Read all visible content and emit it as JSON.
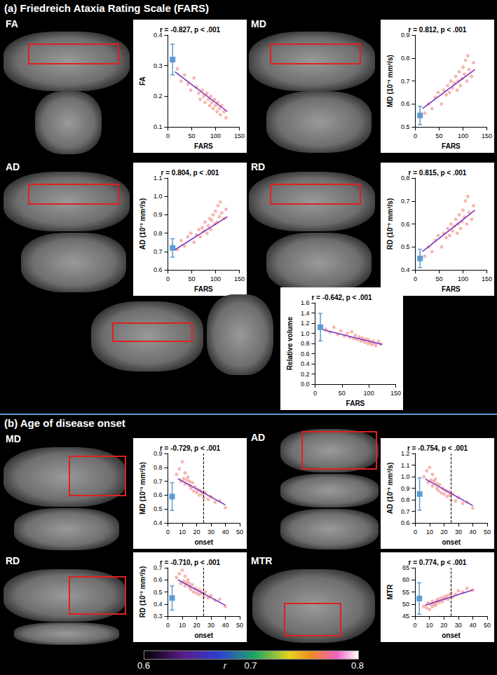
{
  "sections": [
    {
      "label": "(a)",
      "title": "Friedreich Ataxia Rating Scale (FARS)"
    },
    {
      "label": "(b)",
      "title": "Age of disease onset"
    }
  ],
  "colorbar": {
    "label": "r",
    "range": [
      0.6,
      0.8
    ],
    "ticks": [
      0.6,
      0.7,
      0.8
    ]
  },
  "chart_data": [
    {
      "type": "scatter",
      "panel": "FA",
      "annotation": "r = -0.827, p < .001",
      "xlabel": "FARS",
      "ylabel": "FA",
      "grid": false,
      "xlim": [
        0,
        150
      ],
      "xticks": [
        0,
        50,
        100,
        150
      ],
      "ylim": [
        0.1,
        0.4
      ],
      "yticks": [
        0.1,
        0.2,
        0.3,
        0.4
      ],
      "series": [
        {
          "type": "scatter",
          "color": "#f4a6a0",
          "x": [
            20,
            28,
            35,
            42,
            48,
            55,
            60,
            65,
            68,
            72,
            75,
            78,
            82,
            85,
            88,
            90,
            92,
            95,
            98,
            100,
            103,
            105,
            108,
            110,
            113,
            118,
            122
          ],
          "values": [
            0.29,
            0.25,
            0.27,
            0.24,
            0.22,
            0.26,
            0.23,
            0.21,
            0.19,
            0.22,
            0.2,
            0.18,
            0.21,
            0.19,
            0.17,
            0.2,
            0.18,
            0.16,
            0.19,
            0.17,
            0.15,
            0.18,
            0.16,
            0.14,
            0.17,
            0.15,
            0.13
          ]
        },
        {
          "type": "line",
          "color": "#7b2fbe",
          "x": [
            15,
            125
          ],
          "values": [
            0.28,
            0.15
          ]
        },
        {
          "type": "errorbar",
          "color": "#5b9bd5",
          "x": [
            10
          ],
          "values": [
            0.32
          ],
          "error": [
            0.05
          ]
        }
      ]
    },
    {
      "type": "scatter",
      "panel": "MD",
      "annotation": "r = 0.812, p < .001",
      "xlabel": "FARS",
      "ylabel": "MD (10⁻³ mm²/s)",
      "grid": false,
      "xlim": [
        0,
        150
      ],
      "xticks": [
        0,
        50,
        100,
        150
      ],
      "ylim": [
        0.5,
        0.9
      ],
      "yticks": [
        0.5,
        0.6,
        0.7,
        0.8,
        0.9
      ],
      "series": [
        {
          "type": "scatter",
          "color": "#f4a6a0",
          "x": [
            20,
            28,
            35,
            42,
            48,
            55,
            60,
            65,
            68,
            72,
            75,
            78,
            82,
            85,
            88,
            90,
            92,
            95,
            98,
            100,
            103,
            105,
            108,
            110,
            113,
            118,
            122
          ],
          "values": [
            0.56,
            0.6,
            0.58,
            0.63,
            0.65,
            0.6,
            0.66,
            0.64,
            0.68,
            0.65,
            0.7,
            0.67,
            0.69,
            0.72,
            0.66,
            0.7,
            0.74,
            0.68,
            0.71,
            0.76,
            0.73,
            0.79,
            0.7,
            0.81,
            0.75,
            0.72,
            0.78
          ]
        },
        {
          "type": "line",
          "color": "#7b2fbe",
          "x": [
            15,
            125
          ],
          "values": [
            0.58,
            0.75
          ]
        },
        {
          "type": "errorbar",
          "color": "#5b9bd5",
          "x": [
            10
          ],
          "values": [
            0.55
          ],
          "error": [
            0.04
          ]
        }
      ]
    },
    {
      "type": "scatter",
      "panel": "AD",
      "annotation": "r = 0.804, p < .001",
      "xlabel": "FARS",
      "ylabel": "AD (10⁻³ mm²/s)",
      "grid": false,
      "xlim": [
        0,
        150
      ],
      "xticks": [
        0,
        50,
        100,
        150
      ],
      "ylim": [
        0.6,
        1.1
      ],
      "yticks": [
        0.6,
        0.7,
        0.8,
        0.9,
        {
          "value": 1,
          "label": "1.0"
        },
        1.1
      ],
      "series": [
        {
          "type": "scatter",
          "color": "#f4a6a0",
          "x": [
            20,
            28,
            35,
            42,
            48,
            55,
            60,
            65,
            68,
            72,
            75,
            78,
            82,
            85,
            88,
            90,
            92,
            95,
            98,
            100,
            103,
            105,
            108,
            110,
            113,
            118,
            122
          ],
          "values": [
            0.71,
            0.76,
            0.73,
            0.78,
            0.8,
            0.75,
            0.79,
            0.82,
            0.78,
            0.83,
            0.81,
            0.86,
            0.8,
            0.84,
            0.88,
            0.82,
            0.87,
            0.9,
            0.85,
            0.92,
            0.86,
            0.95,
            0.89,
            0.97,
            0.91,
            0.88,
            0.93
          ]
        },
        {
          "type": "line",
          "color": "#7b2fbe",
          "x": [
            15,
            125
          ],
          "values": [
            0.71,
            0.89
          ]
        },
        {
          "type": "errorbar",
          "color": "#5b9bd5",
          "x": [
            10
          ],
          "values": [
            0.72
          ],
          "error": [
            0.05
          ]
        }
      ]
    },
    {
      "type": "scatter",
      "panel": "RD",
      "annotation": "r = 0.815, p < .001",
      "xlabel": "FARS",
      "ylabel": "RD (10⁻³ mm²/s)",
      "grid": false,
      "xlim": [
        0,
        150
      ],
      "xticks": [
        0,
        50,
        100,
        150
      ],
      "ylim": [
        0.4,
        0.8
      ],
      "yticks": [
        0.4,
        0.5,
        0.6,
        0.7,
        0.8
      ],
      "series": [
        {
          "type": "scatter",
          "color": "#f4a6a0",
          "x": [
            20,
            28,
            35,
            42,
            48,
            55,
            60,
            65,
            68,
            72,
            75,
            78,
            82,
            85,
            88,
            90,
            92,
            95,
            98,
            100,
            103,
            105,
            108,
            110,
            113,
            118,
            122
          ],
          "values": [
            0.46,
            0.5,
            0.48,
            0.53,
            0.55,
            0.5,
            0.56,
            0.54,
            0.58,
            0.55,
            0.6,
            0.57,
            0.59,
            0.62,
            0.56,
            0.6,
            0.64,
            0.58,
            0.61,
            0.66,
            0.63,
            0.7,
            0.6,
            0.72,
            0.65,
            0.62,
            0.68
          ]
        },
        {
          "type": "line",
          "color": "#7b2fbe",
          "x": [
            15,
            125
          ],
          "values": [
            0.48,
            0.66
          ]
        },
        {
          "type": "errorbar",
          "color": "#5b9bd5",
          "x": [
            10
          ],
          "values": [
            0.45
          ],
          "error": [
            0.04
          ]
        }
      ]
    },
    {
      "type": "scatter",
      "panel": "Volume",
      "annotation": "r = -0.642, p < .001",
      "xlabel": "FARS",
      "ylabel": "Relative volume",
      "grid": false,
      "xlim": [
        0,
        150
      ],
      "xticks": [
        0,
        50,
        100,
        150
      ],
      "ylim": [
        0,
        1.6
      ],
      "yticks": [
        {
          "value": 0,
          "label": "0.0"
        },
        0.2,
        0.4,
        0.6,
        0.8,
        {
          "value": 1,
          "label": "1.0"
        },
        1.2,
        1.4,
        1.6
      ],
      "series": [
        {
          "type": "scatter",
          "color": "#f4a6a0",
          "x": [
            20,
            28,
            35,
            42,
            48,
            55,
            60,
            65,
            68,
            72,
            75,
            78,
            82,
            85,
            88,
            90,
            92,
            95,
            98,
            100,
            103,
            105,
            108,
            110,
            113,
            118,
            122
          ],
          "values": [
            1.08,
            1.02,
            1.12,
            0.98,
            1.05,
            0.95,
            1.0,
            0.92,
            1.03,
            0.9,
            0.96,
            0.88,
            0.93,
            0.85,
            0.91,
            0.86,
            0.83,
            0.89,
            0.8,
            0.87,
            0.82,
            0.78,
            0.85,
            0.8,
            0.76,
            0.84,
            0.79
          ]
        },
        {
          "type": "line",
          "color": "#7b2fbe",
          "x": [
            15,
            125
          ],
          "values": [
            1.07,
            0.78
          ]
        },
        {
          "type": "errorbar",
          "color": "#5b9bd5",
          "x": [
            10
          ],
          "values": [
            1.12
          ],
          "error": [
            0.27
          ]
        }
      ]
    },
    {
      "type": "scatter",
      "panel": "MD",
      "annotation": "r = -0.729, p < .001",
      "xlabel": "onset",
      "ylabel": "MD (10⁻³ mm²/s)",
      "grid": false,
      "xlim": [
        0,
        50
      ],
      "xticks": [
        0,
        10,
        20,
        30,
        40,
        50
      ],
      "ylim": [
        0.4,
        0.9
      ],
      "yticks": [
        0.4,
        0.5,
        0.6,
        0.7,
        0.8,
        0.9
      ],
      "series": [
        {
          "type": "scatter",
          "color": "#f4a6a0",
          "x": [
            6,
            8,
            9,
            10,
            11,
            12,
            12,
            13,
            14,
            15,
            15,
            16,
            17,
            18,
            19,
            20,
            21,
            22,
            23,
            24,
            25,
            26,
            28,
            30,
            33,
            36,
            40
          ],
          "values": [
            0.75,
            0.79,
            0.7,
            0.84,
            0.72,
            0.76,
            0.68,
            0.71,
            0.73,
            0.67,
            0.7,
            0.65,
            0.69,
            0.63,
            0.66,
            0.62,
            0.64,
            0.6,
            0.63,
            0.61,
            0.58,
            0.62,
            0.57,
            0.59,
            0.55,
            0.56,
            0.51
          ]
        },
        {
          "type": "line",
          "color": "#7b2fbe",
          "x": [
            7,
            40
          ],
          "values": [
            0.72,
            0.53
          ]
        },
        {
          "type": "errorbar",
          "color": "#5b9bd5",
          "x": [
            3
          ],
          "values": [
            0.59
          ],
          "error": [
            0.1
          ]
        },
        {
          "type": "vline",
          "color": "#000000",
          "line_style": "dashed",
          "x": [
            25
          ]
        }
      ]
    },
    {
      "type": "scatter",
      "panel": "AD",
      "annotation": "r = -0.754, p < .001",
      "xlabel": "onset",
      "ylabel": "AD (10⁻³ mm²/s)",
      "grid": false,
      "xlim": [
        0,
        50
      ],
      "xticks": [
        0,
        10,
        20,
        30,
        40,
        50
      ],
      "ylim": [
        0.6,
        1.2
      ],
      "yticks": [
        0.6,
        0.7,
        0.8,
        0.9,
        {
          "value": 1,
          "label": "1.0"
        },
        1.1,
        1.2
      ],
      "series": [
        {
          "type": "scatter",
          "color": "#f4a6a0",
          "x": [
            6,
            8,
            9,
            10,
            11,
            12,
            12,
            13,
            14,
            15,
            15,
            16,
            17,
            18,
            19,
            20,
            21,
            22,
            23,
            24,
            25,
            26,
            28,
            30,
            33,
            36,
            40
          ],
          "values": [
            1.0,
            1.05,
            0.95,
            1.08,
            0.97,
            1.02,
            0.92,
            0.96,
            0.98,
            0.9,
            0.94,
            0.88,
            0.93,
            0.86,
            0.9,
            0.85,
            0.88,
            0.83,
            0.87,
            0.84,
            0.8,
            0.85,
            0.79,
            0.82,
            0.77,
            0.78,
            0.73
          ]
        },
        {
          "type": "line",
          "color": "#7b2fbe",
          "x": [
            7,
            40
          ],
          "values": [
            0.98,
            0.75
          ]
        },
        {
          "type": "errorbar",
          "color": "#5b9bd5",
          "x": [
            3
          ],
          "values": [
            0.85
          ],
          "error": [
            0.14
          ]
        },
        {
          "type": "vline",
          "color": "#000000",
          "line_style": "dashed",
          "x": [
            25
          ]
        }
      ]
    },
    {
      "type": "scatter",
      "panel": "RD",
      "annotation": "r = -0.710, p < .001",
      "xlabel": "onset",
      "ylabel": "RD (10⁻³ mm²/s)",
      "grid": false,
      "xlim": [
        0,
        50
      ],
      "xticks": [
        0,
        10,
        20,
        30,
        40,
        50
      ],
      "ylim": [
        0.3,
        0.7
      ],
      "yticks": [
        0.3,
        0.4,
        0.5,
        0.6,
        0.7
      ],
      "series": [
        {
          "type": "scatter",
          "color": "#f4a6a0",
          "x": [
            6,
            8,
            9,
            10,
            11,
            12,
            12,
            13,
            14,
            15,
            15,
            16,
            17,
            18,
            19,
            20,
            21,
            22,
            23,
            24,
            25,
            26,
            28,
            30,
            33,
            36,
            40
          ],
          "values": [
            0.62,
            0.65,
            0.57,
            0.68,
            0.59,
            0.63,
            0.55,
            0.58,
            0.6,
            0.54,
            0.57,
            0.52,
            0.56,
            0.5,
            0.53,
            0.49,
            0.52,
            0.48,
            0.51,
            0.49,
            0.46,
            0.5,
            0.45,
            0.47,
            0.43,
            0.44,
            0.38
          ]
        },
        {
          "type": "line",
          "color": "#7b2fbe",
          "x": [
            7,
            40
          ],
          "values": [
            0.6,
            0.39
          ]
        },
        {
          "type": "errorbar",
          "color": "#5b9bd5",
          "x": [
            3
          ],
          "values": [
            0.45
          ],
          "error": [
            0.1
          ]
        },
        {
          "type": "vline",
          "color": "#000000",
          "line_style": "dashed",
          "x": [
            25
          ]
        }
      ]
    },
    {
      "type": "scatter",
      "panel": "MTR",
      "annotation": "r = 0.774, p < .001",
      "xlabel": "onset",
      "ylabel": "MTR",
      "grid": false,
      "xlim": [
        0,
        50
      ],
      "xticks": [
        0,
        10,
        20,
        30,
        40,
        50
      ],
      "ylim": [
        45,
        65
      ],
      "yticks": [
        45,
        50,
        55,
        60,
        65
      ],
      "series": [
        {
          "type": "scatter",
          "color": "#f4a6a0",
          "x": [
            6,
            8,
            9,
            10,
            11,
            12,
            12,
            13,
            14,
            15,
            15,
            16,
            17,
            18,
            19,
            20,
            21,
            22,
            23,
            24,
            25,
            26,
            28,
            30,
            33,
            36,
            40
          ],
          "values": [
            49.0,
            48.5,
            50.5,
            47.8,
            49.8,
            48.9,
            51.2,
            50.0,
            49.5,
            51.5,
            50.3,
            52.0,
            50.8,
            52.5,
            51.0,
            53.0,
            52.2,
            53.5,
            52.0,
            53.8,
            54.5,
            52.8,
            54.0,
            55.5,
            55.0,
            56.5,
            55.8
          ]
        },
        {
          "type": "line",
          "color": "#7b2fbe",
          "x": [
            7,
            40
          ],
          "values": [
            49.5,
            55.8
          ]
        },
        {
          "type": "errorbar",
          "color": "#5b9bd5",
          "x": [
            3
          ],
          "values": [
            52.3
          ],
          "error": [
            6.5
          ]
        },
        {
          "type": "vline",
          "color": "#000000",
          "line_style": "dashed",
          "x": [
            25
          ]
        }
      ]
    }
  ]
}
